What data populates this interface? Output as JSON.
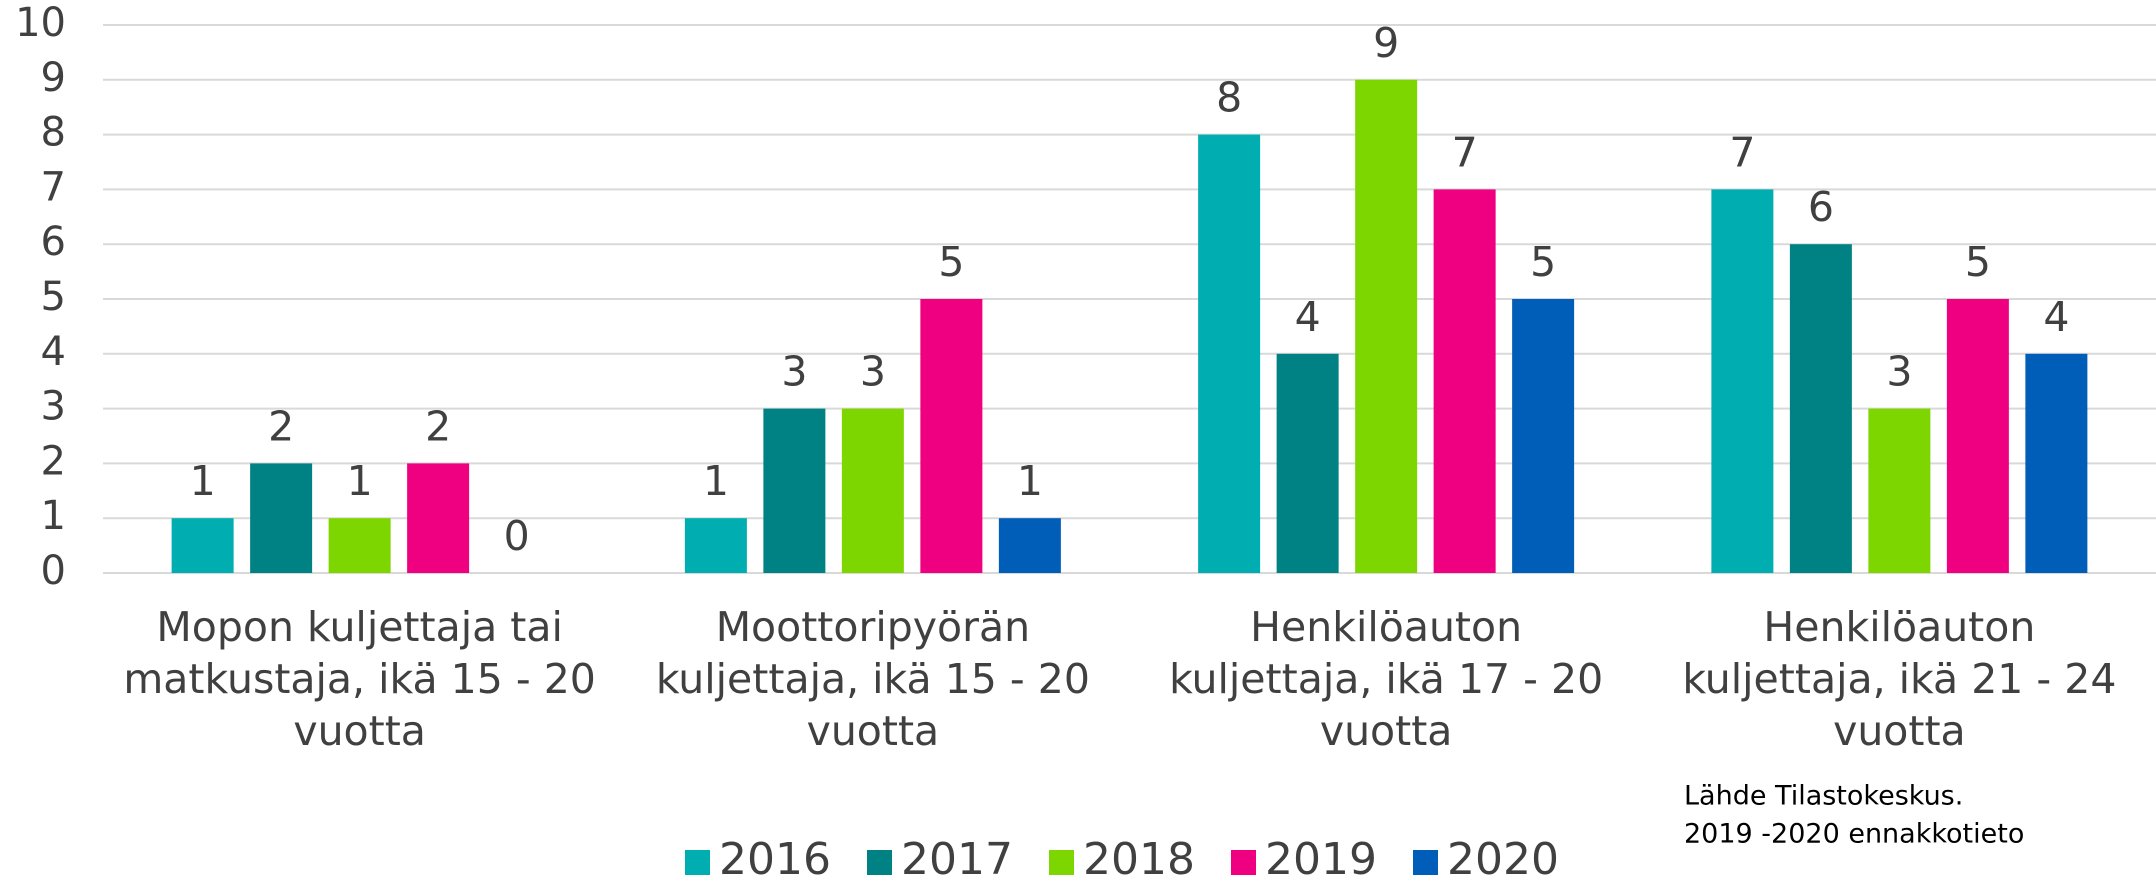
{
  "chart_data": {
    "type": "bar",
    "categories": [
      "Mopon kuljettaja tai\nmatkustaja, ikä 15 - 20\nvuotta",
      "Moottoripyörän\nkuljettaja, ikä 15 - 20\nvuotta",
      "Henkilöauton\nkuljettaja, ikä 17 - 20\nvuotta",
      "Henkilöauton\nkuljettaja, ikä 21 - 24\nvuotta"
    ],
    "series": [
      {
        "name": "2016",
        "color": "#00adb0",
        "values": [
          1,
          1,
          8,
          7
        ]
      },
      {
        "name": "2017",
        "color": "#008284",
        "values": [
          2,
          3,
          4,
          6
        ]
      },
      {
        "name": "2018",
        "color": "#7ed600",
        "values": [
          1,
          3,
          9,
          3
        ]
      },
      {
        "name": "2019",
        "color": "#ee0080",
        "values": [
          2,
          5,
          7,
          5
        ]
      },
      {
        "name": "2020",
        "color": "#005eb8",
        "values": [
          0,
          1,
          5,
          4
        ]
      }
    ],
    "ylim": [
      0,
      10
    ],
    "yticks": [
      0,
      1,
      2,
      3,
      4,
      5,
      6,
      7,
      8,
      9,
      10
    ],
    "grid": true,
    "legend": "bottom",
    "annotations": [
      "Lähde Tilastokeskus.",
      "2019 -2020 ennakkotieto"
    ]
  }
}
